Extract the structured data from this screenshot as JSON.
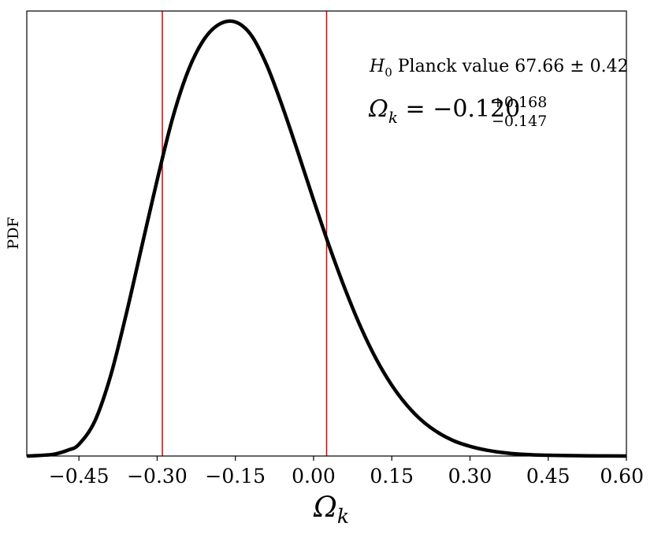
{
  "chart_data": {
    "type": "line",
    "title": "",
    "xlabel": "Ω",
    "xlabel_sub": "k",
    "ylabel": "PDF",
    "xlim": [
      -0.55,
      0.6
    ],
    "ylim": [
      0,
      1.1
    ],
    "xticks": [
      -0.45,
      -0.3,
      -0.15,
      0.0,
      0.15,
      0.3,
      0.45,
      0.6
    ],
    "xtick_labels": [
      "−0.45",
      "−0.30",
      "−0.15",
      "0.00",
      "0.15",
      "0.30",
      "0.45",
      "0.60"
    ],
    "yticks_shown": false,
    "grid": false,
    "series": [
      {
        "color": "#000000",
        "x": [
          -0.55,
          -0.5,
          -0.47,
          -0.45,
          -0.42,
          -0.39,
          -0.36,
          -0.33,
          -0.3,
          -0.27,
          -0.24,
          -0.21,
          -0.18,
          -0.15,
          -0.12,
          -0.09,
          -0.06,
          -0.03,
          0.0,
          0.03,
          0.06,
          0.09,
          0.12,
          0.15,
          0.18,
          0.21,
          0.24,
          0.27,
          0.3,
          0.33,
          0.36,
          0.39,
          0.42,
          0.45,
          0.5,
          0.55,
          0.6
        ],
        "y": [
          0.0,
          0.004,
          0.015,
          0.029,
          0.085,
          0.195,
          0.347,
          0.515,
          0.682,
          0.837,
          0.954,
          1.03,
          1.068,
          1.073,
          1.041,
          0.967,
          0.865,
          0.751,
          0.633,
          0.519,
          0.414,
          0.32,
          0.24,
          0.175,
          0.124,
          0.085,
          0.057,
          0.037,
          0.024,
          0.015,
          0.009,
          0.005,
          0.003,
          0.002,
          0.001,
          0.0003,
          0.0001
        ]
      }
    ],
    "vlines": [
      {
        "x": -0.29,
        "color": "#dd0000"
      },
      {
        "x": 0.025,
        "color": "#dd0000"
      }
    ],
    "annotations": {
      "line1_symbol": "H",
      "line1_sub": "0",
      "line1_text": " Planck value 67.66 ± 0.42",
      "line2_symbol": "Ω",
      "line2_sub": "k",
      "line2_eq": " = −0.120",
      "line2_sup": "+0.168",
      "line2_low": "−0.147"
    }
  }
}
